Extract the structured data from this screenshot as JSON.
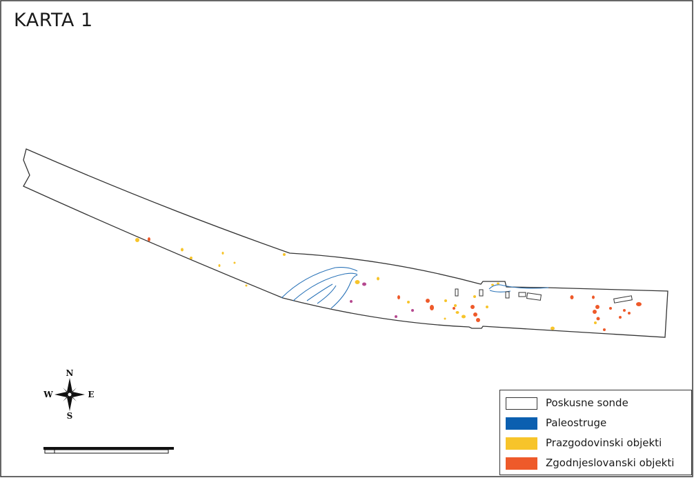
{
  "title": "KARTA 1",
  "compass": {
    "n": "N",
    "s": "S",
    "e": "E",
    "w": "W"
  },
  "legend": {
    "items": [
      {
        "label": "Poskusne sonde",
        "fill": "#ffffff",
        "stroke": "#333333"
      },
      {
        "label": "Paleostruge",
        "fill": "#0b5fb0",
        "stroke": "#0b5fb0"
      },
      {
        "label": "Prazgodovinski objekti",
        "fill": "#f7c42a",
        "stroke": "#f7c42a"
      },
      {
        "label": "Zgodnjeslovanski objekti",
        "fill": "#ee5a2a",
        "stroke": "#ee5a2a"
      }
    ]
  },
  "colors": {
    "outline": "#333333",
    "paleochannel": "#2a73b8",
    "prehistoric": "#f7c42a",
    "early_slavic": "#ee5a2a",
    "purple_feature": "#b5488f"
  }
}
